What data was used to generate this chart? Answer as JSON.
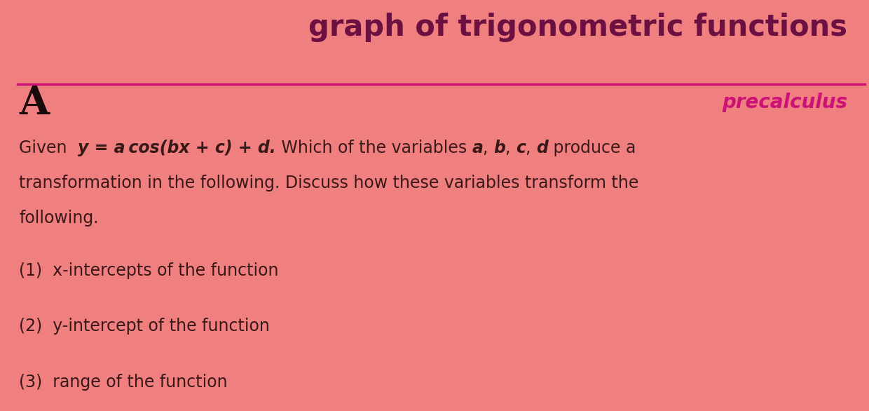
{
  "bg_color": "#F08080",
  "title": "graph of trigonometric functions",
  "title_color": "#6B1040",
  "title_fontsize": 30,
  "subtitle": "precalculus",
  "subtitle_color": "#CC1177",
  "subtitle_fontsize": 20,
  "divider_color": "#CC1177",
  "label_A": "A",
  "label_A_color": "#1A0A0A",
  "label_A_fontsize": 40,
  "text_color": "#3A1818",
  "given_line2": "transformation in the following. Discuss how these variables transform the",
  "given_line3": "following.",
  "item1": "(1)  x-intercepts of the function",
  "item2": "(2)  y-intercept of the function",
  "item3": "(3)  range of the function",
  "body_fontsize": 17,
  "item_fontsize": 17
}
